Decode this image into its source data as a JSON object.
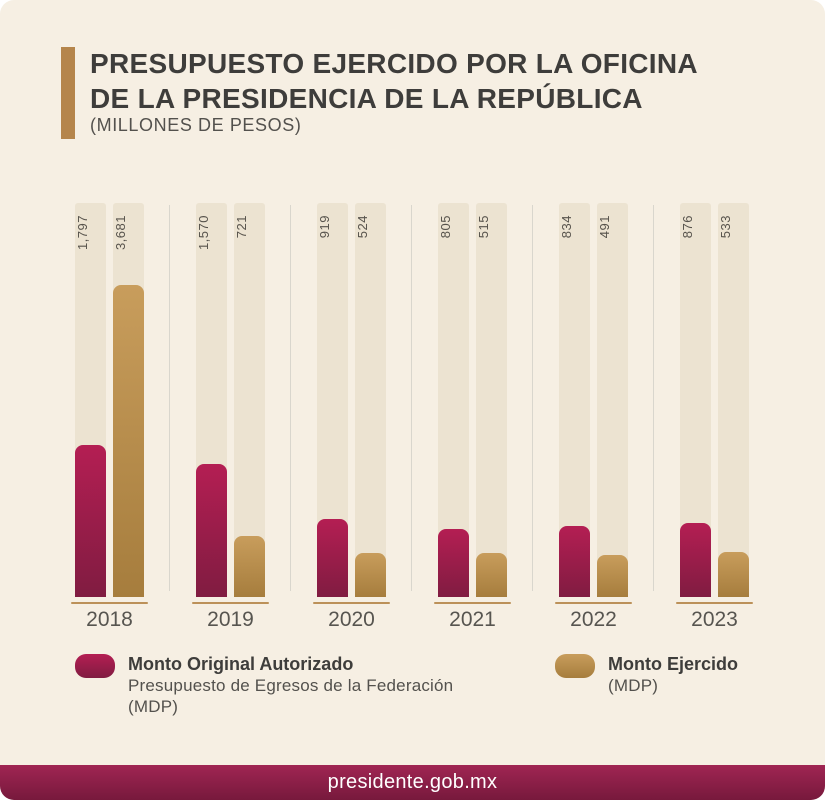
{
  "header": {
    "title_line1": "PRESUPUESTO EJERCIDO POR LA OFICINA",
    "title_line2": "DE LA PRESIDENCIA DE LA REPÚBLICA",
    "subtitle": "(MILLONES DE PESOS)"
  },
  "chart_data": {
    "type": "bar",
    "title": "PRESUPUESTO EJERCIDO POR LA OFICINA DE LA PRESIDENCIA DE LA REPÚBLICA",
    "units": "MILLONES DE PESOS (MDP)",
    "categories": [
      "2018",
      "2019",
      "2020",
      "2021",
      "2022",
      "2023"
    ],
    "series": [
      {
        "name": "Monto Original Autorizado",
        "color_key": "crimson",
        "values": [
          1797,
          1570,
          919,
          805,
          834,
          876
        ],
        "labels": [
          "1,797",
          "1,570",
          "919",
          "805",
          "834",
          "876"
        ]
      },
      {
        "name": "Monto Ejercido",
        "color_key": "gold",
        "values": [
          3681,
          721,
          524,
          515,
          491,
          533
        ],
        "labels": [
          "3,681",
          "721",
          "524",
          "515",
          "491",
          "533"
        ]
      }
    ],
    "ylim": [
      0,
      3681
    ],
    "grid": false,
    "legend_position": "bottom",
    "value_labels_position": "rotated-top-of-column"
  },
  "legend": {
    "items": [
      {
        "title": "Monto Original Autorizado",
        "subtitle": "Presupuesto de Egresos de la Federación",
        "unit": "(MDP)",
        "color_key": "crimson"
      },
      {
        "title": "Monto Ejercido",
        "unit": "(MDP)",
        "color_key": "gold"
      }
    ]
  },
  "footer": {
    "text": "presidente.gob.mx"
  },
  "colors": {
    "bg": "#f6efe3",
    "column": "#ece3d1",
    "divider": "#d9d6cd",
    "accent": "#b5854b",
    "crimson_top": "#b41e53",
    "crimson_bottom": "#801c41",
    "gold_top": "#c89d5c",
    "gold_bottom": "#a67d3d",
    "underline": "#bc9159",
    "title_text": "#3e3d3b",
    "body_text": "#53514d",
    "value_label": "#57534c",
    "year_label": "#575550",
    "footer_top": "#a02553",
    "footer_bottom": "#77193c",
    "footer_text": "#ffffff"
  }
}
